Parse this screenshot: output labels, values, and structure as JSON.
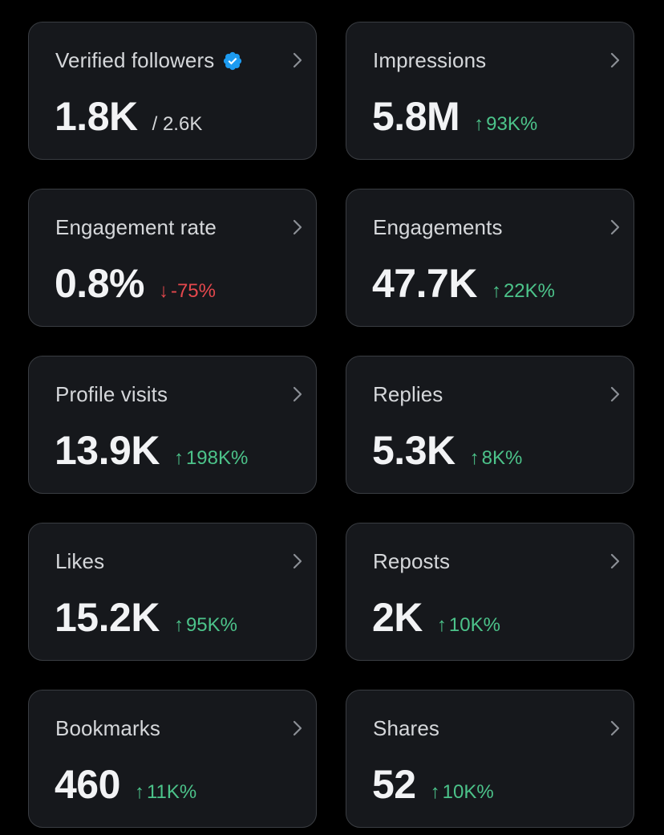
{
  "cards": [
    {
      "label": "Verified followers",
      "value": "1.8K",
      "secondary": "/ 2.6K",
      "verified_icon": "verified-badge-icon",
      "badge_color": "#1d9bf0"
    },
    {
      "label": "Impressions",
      "value": "5.8M",
      "change": "93K%",
      "direction": "up",
      "arrow": "↑"
    },
    {
      "label": "Engagement rate",
      "value": "0.8%",
      "change": "-75%",
      "direction": "down",
      "arrow": "↓"
    },
    {
      "label": "Engagements",
      "value": "47.7K",
      "change": "22K%",
      "direction": "up",
      "arrow": "↑"
    },
    {
      "label": "Profile visits",
      "value": "13.9K",
      "change": "198K%",
      "direction": "up",
      "arrow": "↑"
    },
    {
      "label": "Replies",
      "value": "5.3K",
      "change": "8K%",
      "direction": "up",
      "arrow": "↑"
    },
    {
      "label": "Likes",
      "value": "15.2K",
      "change": "95K%",
      "direction": "up",
      "arrow": "↑"
    },
    {
      "label": "Reposts",
      "value": "2K",
      "change": "10K%",
      "direction": "up",
      "arrow": "↑"
    },
    {
      "label": "Bookmarks",
      "value": "460",
      "change": "11K%",
      "direction": "up",
      "arrow": "↑"
    },
    {
      "label": "Shares",
      "value": "52",
      "change": "10K%",
      "direction": "up",
      "arrow": "↑"
    }
  ],
  "colors": {
    "background": "#000000",
    "card": "#16181c",
    "border": "#3a3d42",
    "positive": "#4cc38a",
    "negative": "#e5484d",
    "verified": "#1d9bf0"
  },
  "icons": {
    "chevron": "chevron-right-icon",
    "up": "arrow-up-icon",
    "down": "arrow-down-icon"
  }
}
